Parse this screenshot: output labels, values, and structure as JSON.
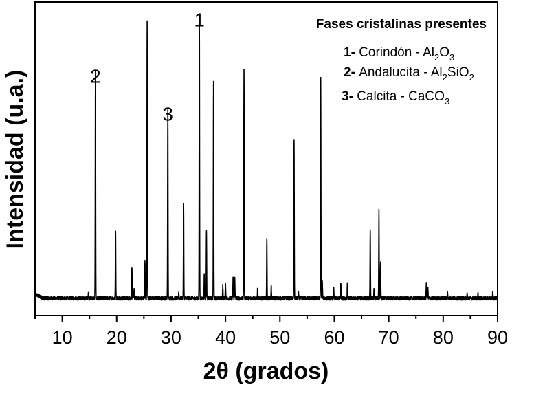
{
  "chart_data": {
    "type": "line",
    "title": "",
    "xlabel": "2θ (grados)",
    "ylabel": "Intensidad (u.a.)",
    "xlim": [
      5,
      90
    ],
    "ylim": [
      0,
      100
    ],
    "x_ticks": [
      10,
      20,
      30,
      40,
      50,
      60,
      70,
      80,
      90
    ],
    "grid": false,
    "baseline": 5.5,
    "noise_amplitude": 0.6,
    "peaks": [
      {
        "x": 14.8,
        "y": 2
      },
      {
        "x": 16.1,
        "y": 72
      },
      {
        "x": 19.8,
        "y": 22
      },
      {
        "x": 22.8,
        "y": 10
      },
      {
        "x": 23.2,
        "y": 3
      },
      {
        "x": 25.2,
        "y": 12
      },
      {
        "x": 25.6,
        "y": 88
      },
      {
        "x": 29.4,
        "y": 60
      },
      {
        "x": 31.4,
        "y": 2
      },
      {
        "x": 32.3,
        "y": 30
      },
      {
        "x": 35.2,
        "y": 90
      },
      {
        "x": 36.1,
        "y": 8
      },
      {
        "x": 36.5,
        "y": 22
      },
      {
        "x": 37.8,
        "y": 69
      },
      {
        "x": 39.5,
        "y": 4
      },
      {
        "x": 40.0,
        "y": 5
      },
      {
        "x": 41.4,
        "y": 7
      },
      {
        "x": 41.7,
        "y": 7
      },
      {
        "x": 43.4,
        "y": 73
      },
      {
        "x": 45.9,
        "y": 3
      },
      {
        "x": 47.6,
        "y": 19
      },
      {
        "x": 48.4,
        "y": 4
      },
      {
        "x": 52.6,
        "y": 51
      },
      {
        "x": 53.4,
        "y": 2
      },
      {
        "x": 57.5,
        "y": 70
      },
      {
        "x": 57.8,
        "y": 5
      },
      {
        "x": 59.9,
        "y": 3
      },
      {
        "x": 61.2,
        "y": 5
      },
      {
        "x": 62.4,
        "y": 5
      },
      {
        "x": 66.6,
        "y": 22
      },
      {
        "x": 67.3,
        "y": 3
      },
      {
        "x": 68.2,
        "y": 28
      },
      {
        "x": 68.5,
        "y": 12
      },
      {
        "x": 76.9,
        "y": 5
      },
      {
        "x": 77.2,
        "y": 3
      },
      {
        "x": 80.8,
        "y": 2
      },
      {
        "x": 84.4,
        "y": 1.5
      },
      {
        "x": 86.4,
        "y": 1.5
      },
      {
        "x": 89.1,
        "y": 2
      }
    ],
    "peak_annotations": [
      {
        "label": "2",
        "x": 16.1,
        "y": 72
      },
      {
        "label": "3",
        "x": 29.4,
        "y": 60
      },
      {
        "label": "1",
        "x": 35.2,
        "y": 90
      }
    ],
    "legend": {
      "placement": "top-right",
      "title": "Fases cristalinas presentes",
      "entries": [
        {
          "num": "1-",
          "text": "Corindón - Al",
          "formula": [
            {
              "t": "2",
              "sub": true
            },
            {
              "t": "O",
              "sub": false
            },
            {
              "t": "3",
              "sub": true
            }
          ]
        },
        {
          "num": "2-",
          "text": "Andalucita - Al",
          "formula": [
            {
              "t": "2",
              "sub": true
            },
            {
              "t": "SiO",
              "sub": false
            },
            {
              "t": "2",
              "sub": true
            }
          ]
        },
        {
          "num": "3-",
          "text": "Calcita - CaCO",
          "formula": [
            {
              "t": "3",
              "sub": true
            }
          ]
        }
      ]
    }
  }
}
